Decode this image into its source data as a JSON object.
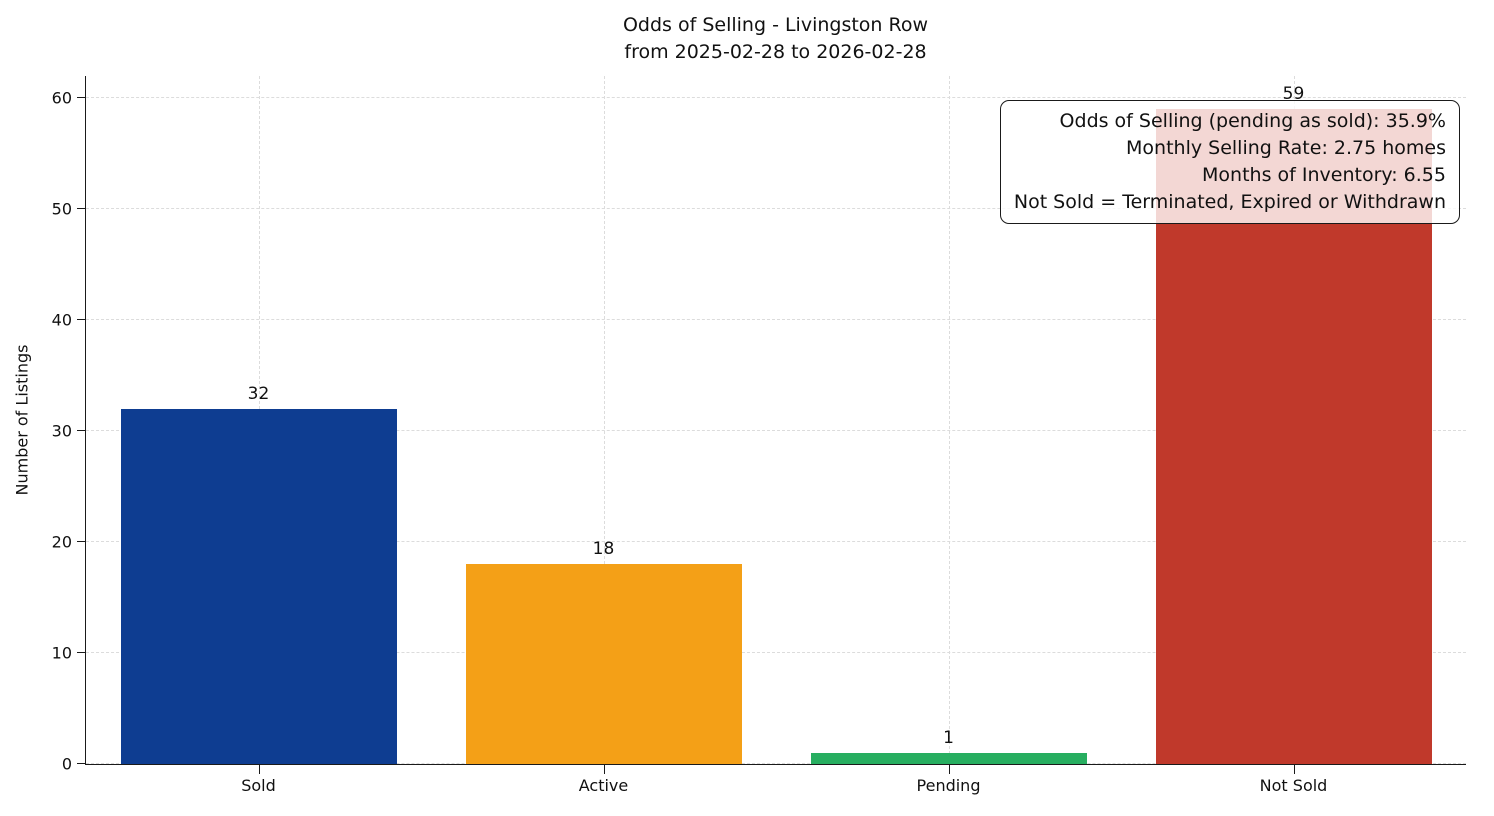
{
  "chart_data": {
    "type": "bar",
    "title_lines": [
      "Odds of Selling - Livingston Row",
      "from 2025-02-28 to 2026-02-28"
    ],
    "categories": [
      "Sold",
      "Active",
      "Pending",
      "Not Sold"
    ],
    "values": [
      32,
      18,
      1,
      59
    ],
    "bar_colors": [
      "#0e3d91",
      "#f4a017",
      "#27ae60",
      "#c0392b"
    ],
    "xlabel": "",
    "ylabel": "Number of Listings",
    "ylim": [
      0,
      62
    ],
    "yticks": [
      0,
      10,
      20,
      30,
      40,
      50,
      60
    ],
    "grid": "dashed, horizontal at yticks and vertical at category centers",
    "legend": "none",
    "annotation": {
      "position": "top-right",
      "lines": [
        "Odds of Selling (pending as sold): 35.9%",
        "Monthly Selling Rate: 2.75 homes",
        "Months of Inventory: 6.55",
        "Not Sold = Terminated, Expired or Withdrawn"
      ]
    }
  }
}
